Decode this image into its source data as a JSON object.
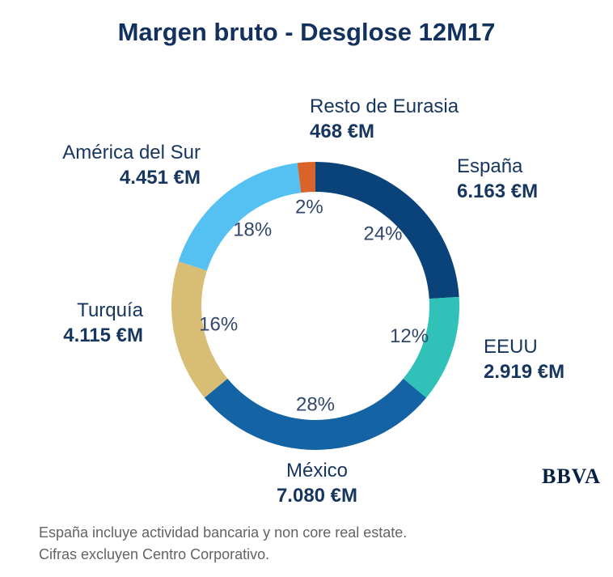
{
  "title": "Margen bruto - Desglose 12M17",
  "chart_data": {
    "type": "pie",
    "subtype": "donut",
    "title": "Margen bruto - Desglose 12M17",
    "direction": "clockwise",
    "start_angle_deg": 0,
    "legend": "none",
    "unit": "€M",
    "segments": [
      {
        "name": "España",
        "value": 6163,
        "value_label": "6.163 €M",
        "pct": 24,
        "pct_label": "24%",
        "color": "#0a4379"
      },
      {
        "name": "EEUU",
        "value": 2919,
        "value_label": "2.919 €M",
        "pct": 12,
        "pct_label": "12%",
        "color": "#30c2b8"
      },
      {
        "name": "México",
        "value": 7080,
        "value_label": "7.080 €M",
        "pct": 28,
        "pct_label": "28%",
        "color": "#1464a5"
      },
      {
        "name": "Turquía",
        "value": 4115,
        "value_label": "4.115 €M",
        "pct": 16,
        "pct_label": "16%",
        "color": "#d8be75"
      },
      {
        "name": "América del Sur",
        "value": 4451,
        "value_label": "4.451 €M",
        "pct": 18,
        "pct_label": "18%",
        "color": "#55c1f2"
      },
      {
        "name": "Resto de Eurasia",
        "value": 468,
        "value_label": "468 €M",
        "pct": 2,
        "pct_label": "2%",
        "color": "#d8642a"
      }
    ]
  },
  "footnote": {
    "line1": "España incluye actividad bancaria y non core real estate.",
    "line2": "Cifras excluyen Centro Corporativo."
  },
  "logo_text": "BBVA",
  "colors": {
    "title": "#12315e",
    "label": "#16365f",
    "percent_label": "#32476b",
    "footnote": "#636363",
    "logo": "#072146",
    "background": "#ffffff"
  }
}
